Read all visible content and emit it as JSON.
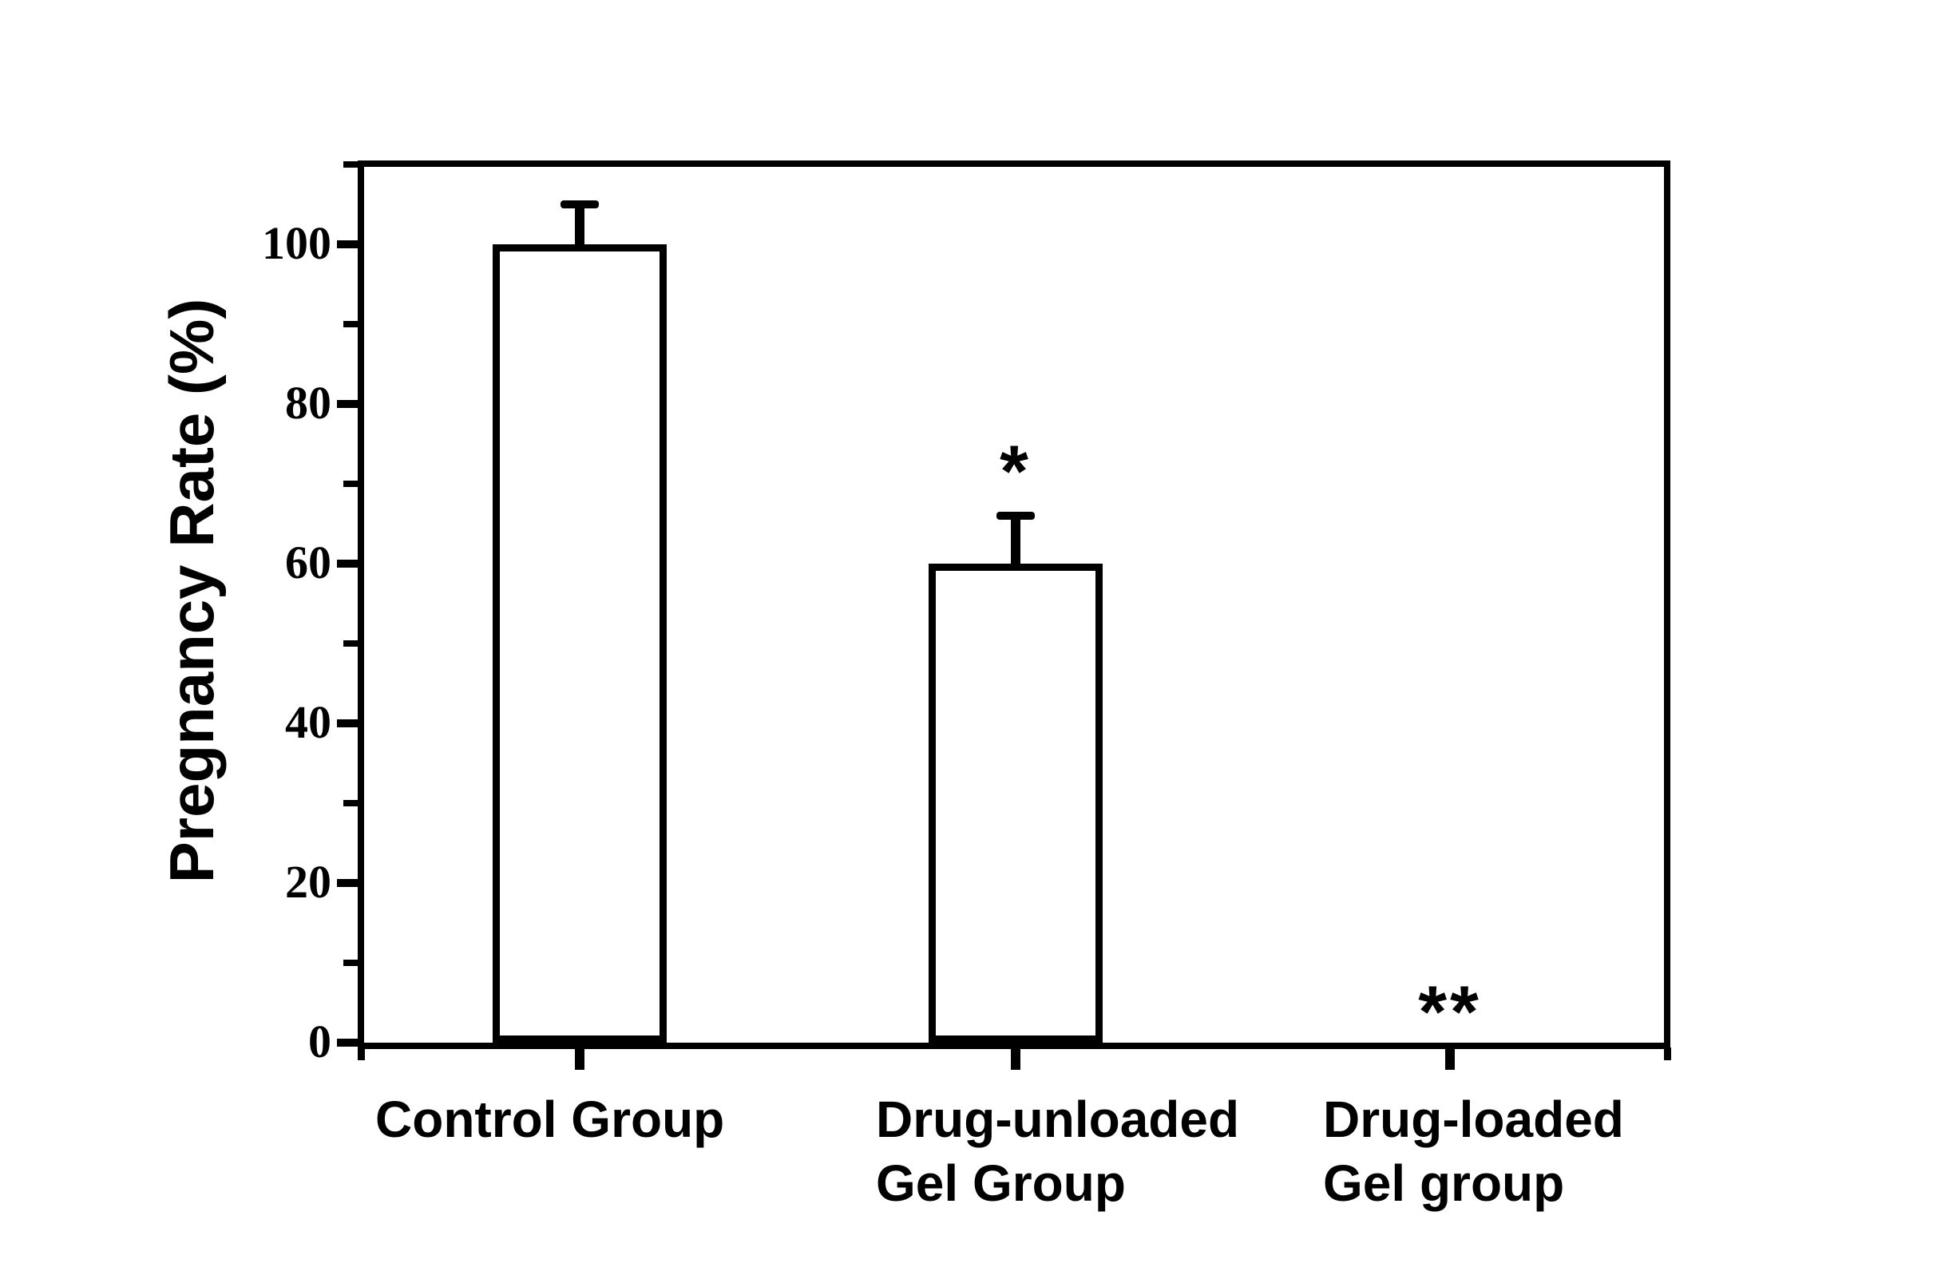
{
  "chart_data": {
    "type": "bar",
    "title": "",
    "xlabel": "",
    "ylabel": "Pregnancy Rate (%)",
    "ylim": [
      0,
      110
    ],
    "grid": false,
    "legend": null,
    "background_color": "#ffffff",
    "axis_color": "#000000",
    "bar_fill_color": "#ffffff",
    "bar_edge_color": "#000000",
    "yticks_major": [
      0,
      20,
      40,
      60,
      80,
      100
    ],
    "yticks_minor": [
      10,
      30,
      50,
      70,
      90,
      110
    ],
    "categories": [
      "Control Group",
      "Drug-unloaded Gel Group",
      "Drug-loaded Gel group"
    ],
    "category_label_lines": [
      [
        "Control Group"
      ],
      [
        "Drug-unloaded",
        "Gel Group"
      ],
      [
        "Drug-loaded",
        "Gel group"
      ]
    ],
    "values": [
      100,
      60,
      0
    ],
    "errors_plus": [
      5,
      6,
      0
    ],
    "significance_annotations": [
      "",
      "*",
      "**"
    ]
  }
}
